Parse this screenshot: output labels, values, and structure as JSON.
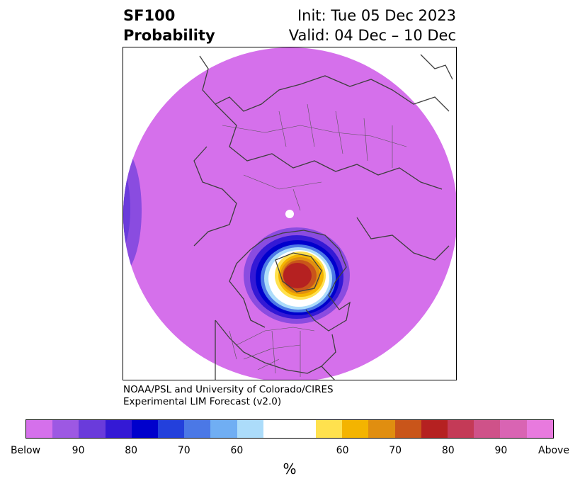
{
  "header": {
    "variable": "SF100",
    "product": "Probability",
    "init": "Init: Tue 05 Dec 2023",
    "valid": "Valid: 04 Dec – 10 Dec"
  },
  "credit": {
    "line1": "NOAA/PSL and University of Colorado/CIRES",
    "line2": "Experimental LIM Forecast (v2.0)"
  },
  "colorbar": {
    "unit": "%",
    "colors": [
      "#d570eb",
      "#9d58e3",
      "#6a3bdb",
      "#3419d5",
      "#0000cc",
      "#2340dc",
      "#4b78e6",
      "#70aef3",
      "#acdcfa",
      "#ffffff",
      "#ffe14e",
      "#f4b400",
      "#e08e10",
      "#c9551a",
      "#b52121",
      "#c43a57",
      "#cf5289",
      "#d964b3",
      "#e87ade"
    ],
    "widths": [
      1,
      1,
      1,
      1,
      1,
      1,
      1,
      1,
      1,
      2,
      1,
      1,
      1,
      1,
      1,
      1,
      1,
      1,
      1
    ],
    "tick_labels": [
      "Below",
      "90",
      "80",
      "70",
      "60",
      "60",
      "70",
      "80",
      "90",
      "Above"
    ]
  },
  "map": {
    "base_color": "#d570eb",
    "anomaly_colors": [
      "#8a4ce0",
      "#3419d5",
      "#0000cc",
      "#4b78e6",
      "#acdcfa",
      "#ffffff",
      "#ffe14e",
      "#f4b400",
      "#e08e10",
      "#c9551a",
      "#b52121"
    ]
  }
}
